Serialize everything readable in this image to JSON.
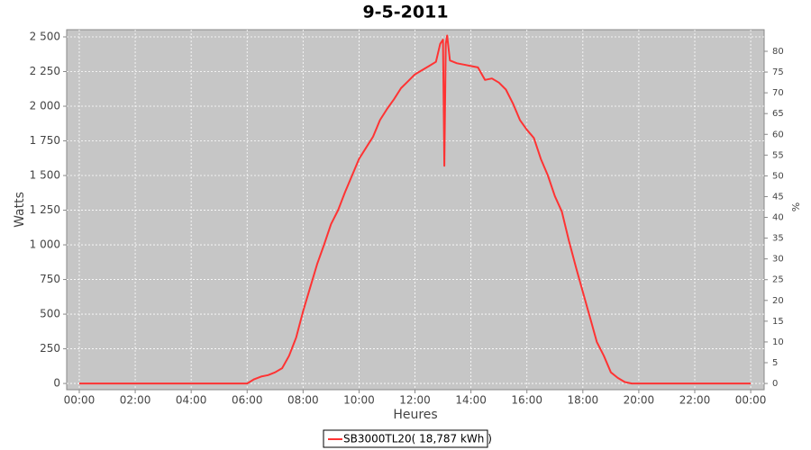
{
  "chart_data": {
    "type": "line",
    "title": "9-5-2011",
    "x_label": "Heures",
    "y_label": "Watts",
    "y2_label": "%",
    "x": [
      0,
      6.0,
      6.25,
      6.5,
      6.75,
      7.0,
      7.25,
      7.5,
      7.75,
      8.0,
      8.25,
      8.5,
      8.75,
      9.0,
      9.25,
      9.5,
      9.75,
      10.0,
      10.25,
      10.5,
      10.75,
      11.0,
      11.25,
      11.5,
      11.75,
      12.0,
      12.25,
      12.5,
      12.75,
      12.9,
      13.0,
      13.05,
      13.1,
      13.15,
      13.25,
      13.5,
      13.75,
      14.0,
      14.25,
      14.5,
      14.75,
      15.0,
      15.25,
      15.5,
      15.75,
      16.0,
      16.25,
      16.5,
      16.75,
      17.0,
      17.25,
      17.5,
      17.75,
      18.0,
      18.25,
      18.5,
      18.75,
      19.0,
      19.25,
      19.5,
      19.75,
      20.0,
      24.0
    ],
    "series": [
      {
        "name": "SB3000TL20( 18,787 kWh )",
        "color": "#ff3333",
        "values": [
          0,
          0,
          30,
          50,
          60,
          80,
          110,
          200,
          330,
          520,
          690,
          860,
          1000,
          1150,
          1250,
          1380,
          1500,
          1620,
          1700,
          1780,
          1900,
          1980,
          2050,
          2130,
          2180,
          2230,
          2260,
          2290,
          2320,
          2450,
          2480,
          1570,
          2450,
          2510,
          2330,
          2310,
          2300,
          2290,
          2280,
          2190,
          2200,
          2170,
          2120,
          2020,
          1900,
          1830,
          1770,
          1620,
          1500,
          1350,
          1240,
          1030,
          840,
          660,
          480,
          300,
          200,
          80,
          40,
          10,
          0,
          0,
          0
        ]
      }
    ],
    "xlim": [
      -0.45,
      24.48
    ],
    "xticks": [
      {
        "value": 0,
        "label": "00:00"
      },
      {
        "value": 2,
        "label": "02:00"
      },
      {
        "value": 4,
        "label": "04:00"
      },
      {
        "value": 6,
        "label": "06:00"
      },
      {
        "value": 8,
        "label": "08:00"
      },
      {
        "value": 10,
        "label": "10:00"
      },
      {
        "value": 12,
        "label": "12:00"
      },
      {
        "value": 14,
        "label": "14:00"
      },
      {
        "value": 16,
        "label": "16:00"
      },
      {
        "value": 18,
        "label": "18:00"
      },
      {
        "value": 20,
        "label": "20:00"
      },
      {
        "value": 22,
        "label": "22:00"
      },
      {
        "value": 24,
        "label": "00:00"
      }
    ],
    "ylim": [
      -45,
      2552
    ],
    "yticks": [
      0,
      250,
      500,
      750,
      {
        "value": 1000,
        "label": "1 000"
      },
      {
        "value": 1250,
        "label": "1 250"
      },
      {
        "value": 1500,
        "label": "1 500"
      },
      {
        "value": 1750,
        "label": "1 750"
      },
      {
        "value": 2000,
        "label": "2 000"
      },
      {
        "value": 2250,
        "label": "2 250"
      },
      {
        "value": 2500,
        "label": "2 500"
      }
    ],
    "y2lim": [
      -1.5,
      85.2
    ],
    "y2ticks": [
      0,
      5,
      10,
      15,
      20,
      25,
      30,
      35,
      40,
      45,
      50,
      55,
      60,
      65,
      70,
      75,
      80
    ],
    "grid": true,
    "legend": "bottom"
  }
}
